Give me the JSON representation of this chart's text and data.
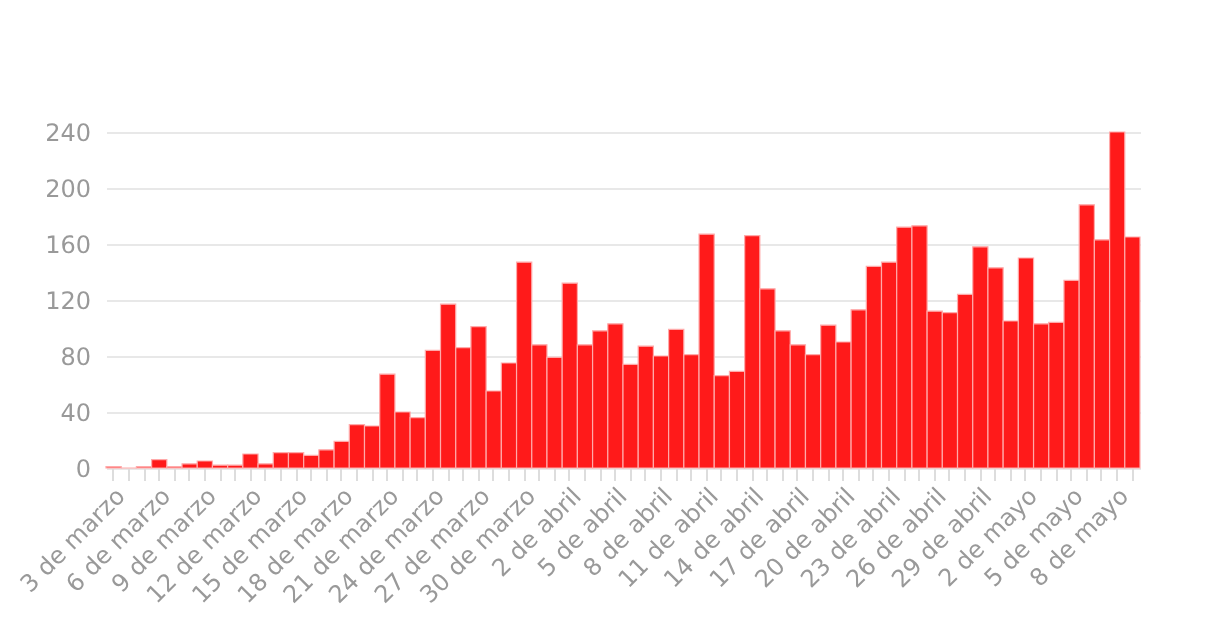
{
  "chart_data": {
    "type": "bar",
    "categories": [
      "3 de marzo",
      null,
      null,
      "6 de marzo",
      null,
      null,
      "9 de marzo",
      null,
      null,
      "12 de marzo",
      null,
      null,
      "15 de marzo",
      null,
      null,
      "18 de marzo",
      null,
      null,
      "21 de marzo",
      null,
      null,
      "24 de marzo",
      null,
      null,
      "27 de marzo",
      null,
      null,
      "30 de marzo",
      null,
      null,
      "2 de abril",
      null,
      null,
      "5 de abril",
      null,
      null,
      "8 de abril",
      null,
      null,
      "11 de abril",
      null,
      null,
      "14 de abril",
      null,
      null,
      "17 de abril",
      null,
      null,
      "20 de abril",
      null,
      null,
      "23 de abril",
      null,
      null,
      "26 de abril",
      null,
      null,
      "29 de abril",
      null,
      null,
      "2 de mayo",
      null,
      null,
      "5 de mayo",
      null,
      null,
      "8 de mayo",
      null
    ],
    "values": [
      1,
      0,
      1,
      6,
      1,
      3,
      5,
      2,
      2,
      10,
      3,
      11,
      11,
      9,
      13,
      19,
      31,
      30,
      67,
      40,
      36,
      84,
      117,
      86,
      101,
      55,
      75,
      147,
      88,
      79,
      132,
      88,
      98,
      103,
      74,
      87,
      80,
      99,
      81,
      167,
      66,
      69,
      166,
      128,
      98,
      88,
      81,
      102,
      90,
      113,
      144,
      147,
      172,
      173,
      112,
      111,
      124,
      158,
      143,
      105,
      150,
      103,
      104,
      134,
      188,
      163,
      240,
      165
    ],
    "color": "#ff1a1a",
    "ylim": [
      0,
      240
    ],
    "yticks": [
      0,
      40,
      80,
      120,
      160,
      200,
      240
    ],
    "grid": "y"
  }
}
